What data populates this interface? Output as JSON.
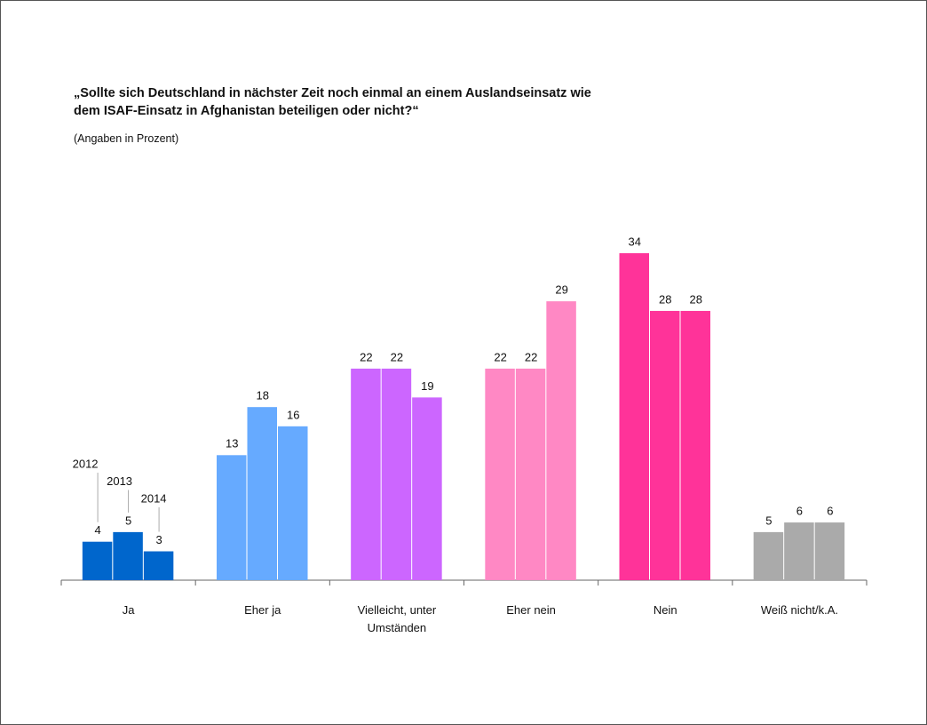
{
  "chart_data": {
    "type": "bar",
    "title": [
      "„Sollte sich Deutschland in nächster Zeit noch einmal an einem Auslandseinsatz wie",
      "dem ISAF-Einsatz in Afghanistan beteiligen oder nicht?“"
    ],
    "subtitle": "(Angaben in Prozent)",
    "categories": [
      "Ja",
      "Eher ja",
      "Vielleicht, unter Umständen",
      "Eher nein",
      "Nein",
      "Weiß nicht/k.A."
    ],
    "colors": [
      "#0066cc",
      "#66aaff",
      "#cc66ff",
      "#ff88c4",
      "#ff3399",
      "#aaaaaa"
    ],
    "series": [
      {
        "name": "2012",
        "values": [
          4,
          13,
          22,
          22,
          34,
          5
        ]
      },
      {
        "name": "2013",
        "values": [
          5,
          18,
          22,
          22,
          28,
          6
        ]
      },
      {
        "name": "2014",
        "values": [
          3,
          16,
          19,
          29,
          28,
          6
        ]
      }
    ],
    "ylim": [
      0,
      34
    ]
  }
}
